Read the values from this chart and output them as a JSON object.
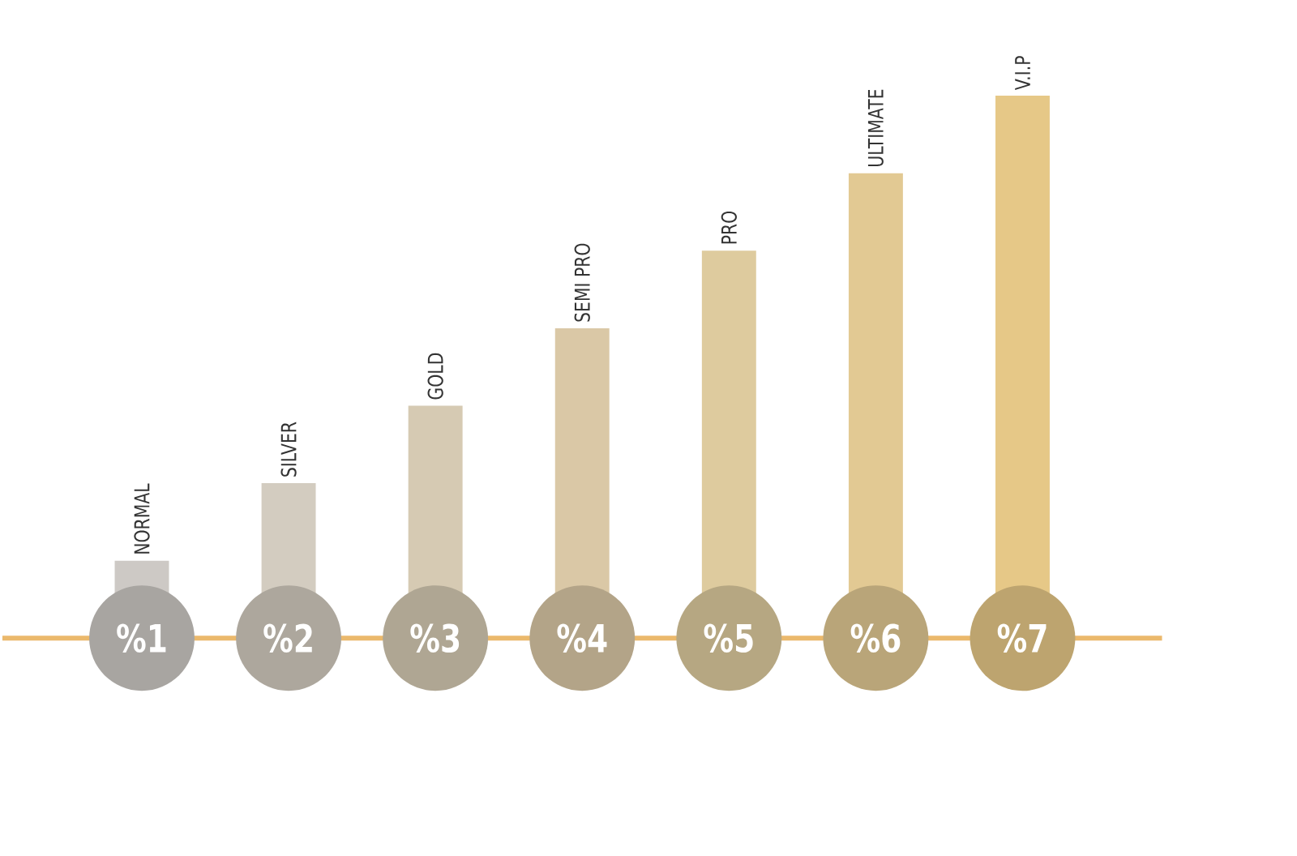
{
  "chart_data": {
    "type": "bar",
    "data_labels": true,
    "categories": [
      "NORMAL",
      "SILVER",
      "GOLD",
      "SEMI PRO",
      "PRO",
      "ULTIMATE",
      "V.I.P"
    ],
    "values": [
      1,
      2,
      3,
      4,
      5,
      6,
      7
    ],
    "value_labels": [
      "%1",
      "%2",
      "%3",
      "%4",
      "%5",
      "%6",
      "%7"
    ],
    "colors": [
      "#cdc9c5",
      "#d3ccc0",
      "#d6cab3",
      "#dac8a6",
      "#decb9e",
      "#e2c993",
      "#e6c887"
    ]
  }
}
